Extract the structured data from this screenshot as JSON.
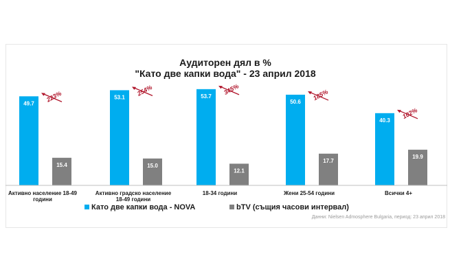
{
  "chart_data": {
    "type": "bar",
    "title": "Аудиторен дял в %",
    "subtitle": "\"Като две капки вода\" - 23 април 2018",
    "categories": [
      [
        "Активно население 18-49",
        "години"
      ],
      [
        "Активно градско население",
        "18-49 години"
      ],
      [
        "18-34 години"
      ],
      [
        "Жени 25-54 години"
      ],
      [
        "Всички 4+"
      ]
    ],
    "series": [
      {
        "name": "Като две капки вода - NOVA",
        "color": "#00adef",
        "values": [
          49.7,
          53.1,
          53.7,
          50.6,
          40.3
        ]
      },
      {
        "name": "bTV (същия часови интервал)",
        "color": "#808080",
        "values": [
          15.4,
          15.0,
          12.1,
          17.7,
          19.9
        ]
      }
    ],
    "annotations": [
      "223%",
      "254%",
      "345%",
      "185%",
      "102%"
    ],
    "annotation_color": "#b0142a",
    "ylim": [
      0,
      60
    ],
    "source": "Данни: Nielsen Admosphere Bulgaria, период: 23 април 2018",
    "grid": false,
    "legend_position": "bottom"
  }
}
